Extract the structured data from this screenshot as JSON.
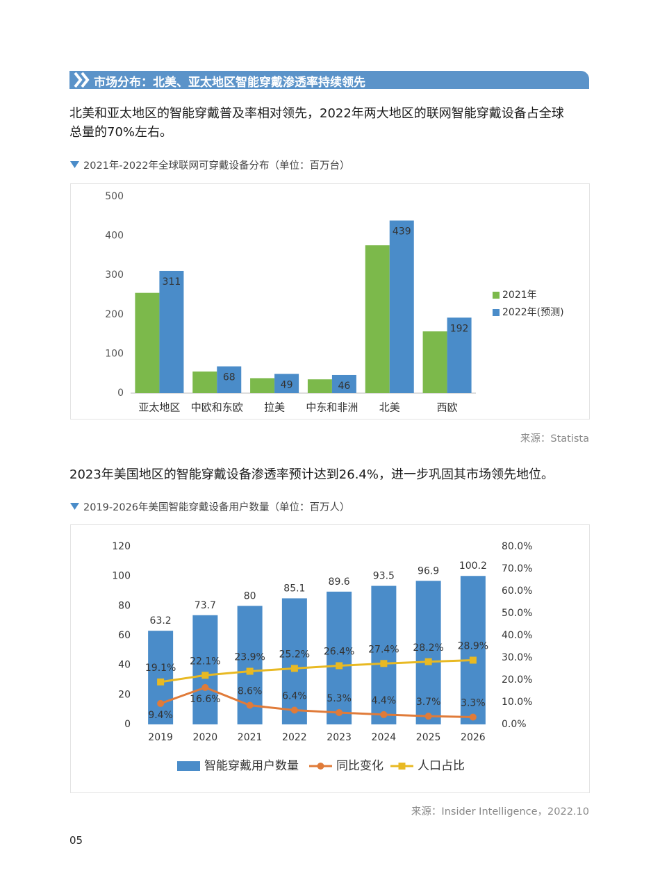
{
  "header": {
    "title": "市场分布：北美、亚太地区智能穿戴渗透率持续领先"
  },
  "paragraphs": [
    [
      "北美和亚太地区的智能穿戴普及率相对领先，2022年两大地区的联网智能穿戴设备占全球",
      "总量的70%左右。"
    ],
    [
      "2023年美国地区的智能穿戴设备渗透率预计达到26.4%，进一步巩固其市场领先地位。"
    ]
  ],
  "sources": [
    "来源：Statista",
    "来源：Insider Intelligence，2022.10"
  ],
  "page_number": "05",
  "chart_data": [
    {
      "type": "bar",
      "title": "2021年-2022年全球联网可穿戴设备分布（单位：百万台）",
      "categories": [
        "亚太地区",
        "中欧和东欧",
        "拉美",
        "中东和非洲",
        "北美",
        "西欧"
      ],
      "series": [
        {
          "name": "2021年",
          "color": "#7cb94b",
          "values": [
            255,
            55,
            38,
            35,
            376,
            157
          ]
        },
        {
          "name": "2022年(预测)",
          "color": "#4a8cc9",
          "values": [
            311,
            68,
            49,
            46,
            439,
            192
          ],
          "data_labels": true
        }
      ],
      "ylim": [
        0,
        500
      ],
      "yticks": [
        0,
        100,
        200,
        300,
        400,
        500
      ],
      "grid": false,
      "legend": "right"
    },
    {
      "type": "combo",
      "title": "2019-2026年美国智能穿戴设备用户数量（单位：百万人）",
      "categories": [
        "2019",
        "2020",
        "2021",
        "2022",
        "2023",
        "2024",
        "2025",
        "2026"
      ],
      "series": [
        {
          "name": "智能穿戴用户数量",
          "type": "bar",
          "color": "#4a8cc9",
          "values": [
            63.2,
            73.7,
            80,
            85.1,
            89.6,
            93.5,
            96.9,
            100.2
          ]
        },
        {
          "name": "同比变化",
          "type": "line",
          "axis": "y2",
          "marker": "circle",
          "color": "#e07b39",
          "values": [
            9.4,
            16.6,
            8.6,
            6.4,
            5.3,
            4.4,
            3.7,
            3.3
          ],
          "value_labels": [
            "9.4%",
            "16.6%",
            "8.6%",
            "6.4%",
            "5.3%",
            "4.4%",
            "3.7%",
            "3.3%"
          ]
        },
        {
          "name": "人口占比",
          "type": "line",
          "axis": "y2",
          "marker": "square",
          "color": "#e8b923",
          "values": [
            19.1,
            22.1,
            23.9,
            25.2,
            26.4,
            27.4,
            28.2,
            28.9
          ],
          "value_labels": [
            "19.1%",
            "22.1%",
            "23.9%",
            "25.2%",
            "26.4%",
            "27.4%",
            "28.2%",
            "28.9%"
          ]
        }
      ],
      "ylim": [
        0,
        120
      ],
      "yticks": [
        0,
        20,
        40,
        60,
        80,
        100,
        120
      ],
      "y2lim": [
        0,
        80
      ],
      "y2ticks": [
        {
          "value": 0,
          "label": "0.0%"
        },
        {
          "value": 10,
          "label": "10.0%"
        },
        {
          "value": 20,
          "label": "20.0%"
        },
        {
          "value": 30,
          "label": "30.0%"
        },
        {
          "value": 40,
          "label": "40.0%"
        },
        {
          "value": 50,
          "label": "50.0%"
        },
        {
          "value": 60,
          "label": "60.0%"
        },
        {
          "value": 70,
          "label": "70.0%"
        },
        {
          "value": 80,
          "label": "80.0%"
        }
      ],
      "grid": false,
      "legend": "bottom"
    }
  ]
}
